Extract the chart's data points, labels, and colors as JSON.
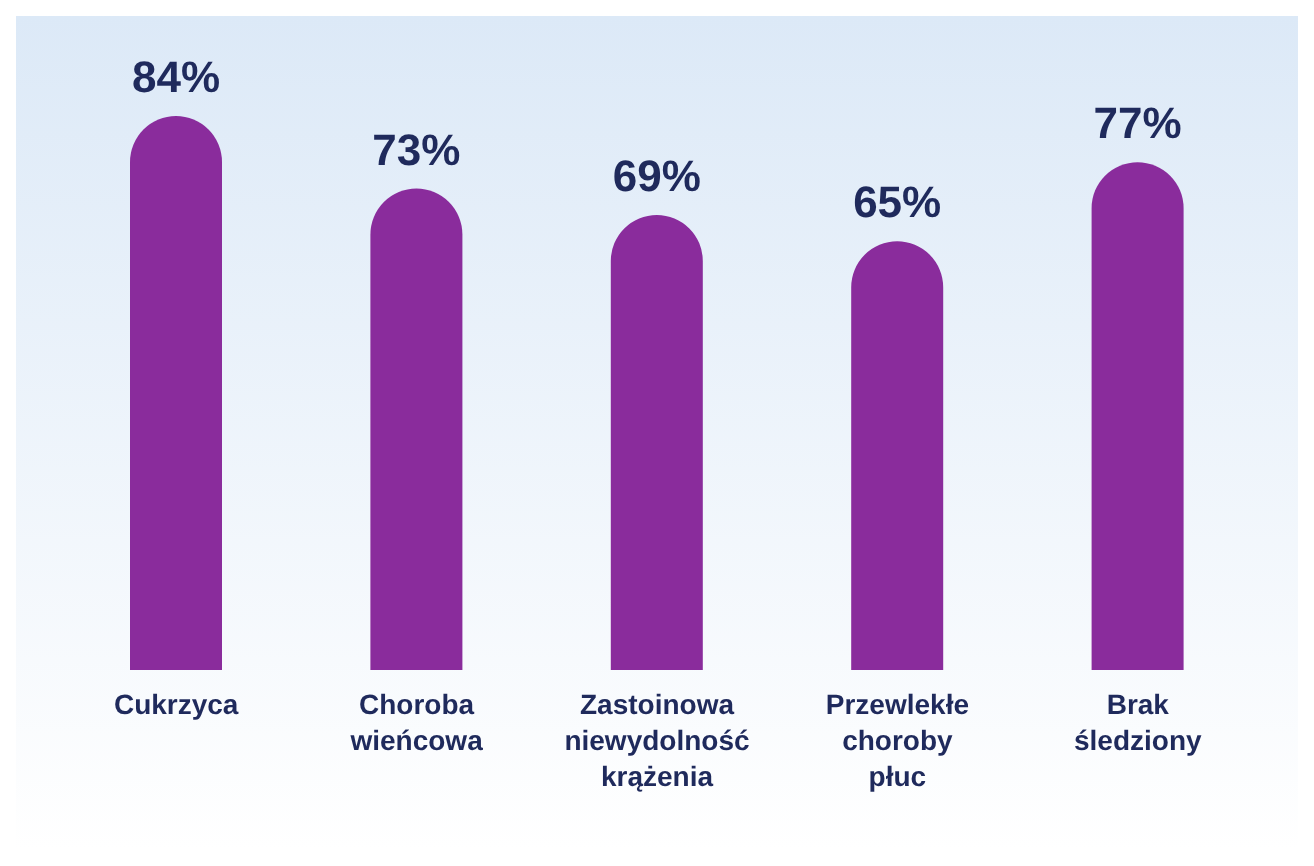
{
  "chart_data": {
    "type": "bar",
    "categories": [
      "Cukrzyca",
      "Choroba wieńcowa",
      "Zastoinowa niewydolność krążenia",
      "Przewlekłe choroby płuc",
      "Brak śledziony"
    ],
    "values": [
      84,
      73,
      69,
      65,
      77
    ],
    "value_labels": [
      "84%",
      "73%",
      "69%",
      "65%",
      "77%"
    ],
    "color": "#8a2c9c"
  }
}
